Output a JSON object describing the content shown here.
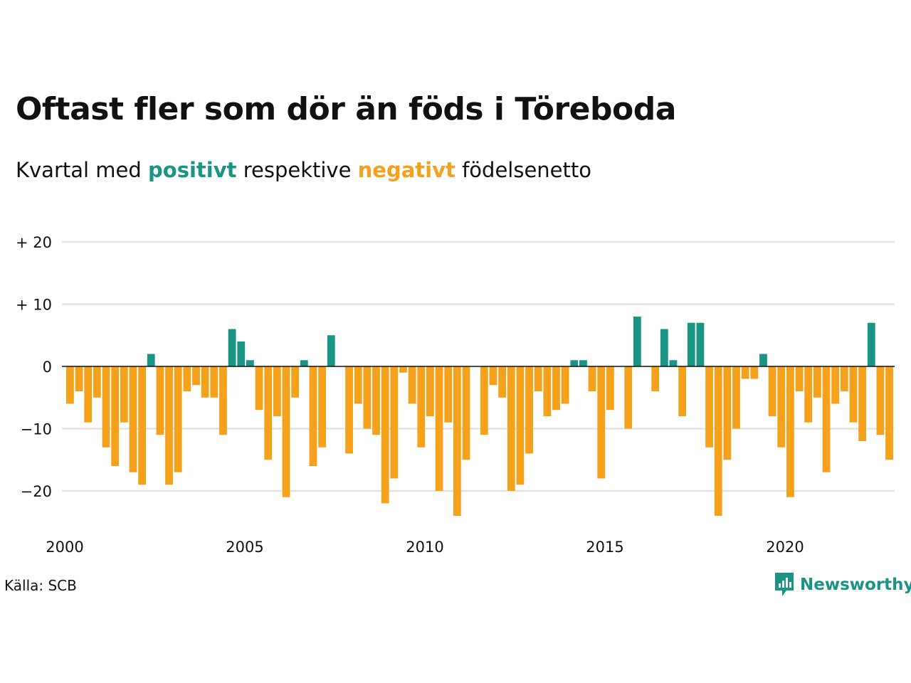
{
  "title": "Oftast fler som dör än föds i Töreboda",
  "subtitle": {
    "before": "Kvartal med ",
    "positive_word": "positivt",
    "middle": " respektive ",
    "negative_word": "negativt",
    "after": " födelsenetto"
  },
  "source": "Källa: SCB",
  "brand": {
    "name": "Newsworthy",
    "icon": "newsworthy-logo-icon"
  },
  "colors": {
    "positive": "#1a9485",
    "negative": "#f5a11c",
    "grid": "#e3e3e3",
    "zero_line": "#111111"
  },
  "chart_data": {
    "type": "bar",
    "ylim": [
      -25,
      20
    ],
    "y_ticks": [
      {
        "value": 20,
        "label": "+ 20"
      },
      {
        "value": 10,
        "label": "+ 10"
      },
      {
        "value": 0,
        "label": "0"
      },
      {
        "value": -10,
        "label": "−10"
      },
      {
        "value": -20,
        "label": "−20"
      }
    ],
    "x_ticks": [
      "2000",
      "2005",
      "2010",
      "2015",
      "2020"
    ],
    "start_year": 2000,
    "grid": true,
    "series": [
      {
        "values": [
          -6,
          -4,
          -9,
          -5,
          -13,
          -16,
          -9,
          -17,
          -19,
          2,
          -11,
          -19,
          -17,
          -4,
          -3,
          -5,
          -5,
          -11,
          6,
          4,
          1,
          -7,
          -15,
          -8,
          -21,
          -5,
          1,
          -16,
          -13,
          5,
          0,
          -14,
          -6,
          -10,
          -11,
          -22,
          -18,
          -1,
          -6,
          -13,
          -8,
          -20,
          -9,
          -24,
          -15,
          0,
          -11,
          -3,
          -5,
          -20,
          -19,
          -14,
          -4,
          -8,
          -7,
          -6,
          1,
          1,
          -4,
          -18,
          -7,
          0,
          -10,
          8,
          0,
          -4,
          6,
          1,
          -8,
          7,
          7,
          -13,
          -24,
          -15,
          -10,
          -2,
          -2,
          2,
          -8,
          -13,
          -21,
          -4,
          -9,
          -5,
          -17,
          -6,
          -4,
          -9,
          -12,
          7,
          -11,
          -15
        ]
      }
    ]
  }
}
